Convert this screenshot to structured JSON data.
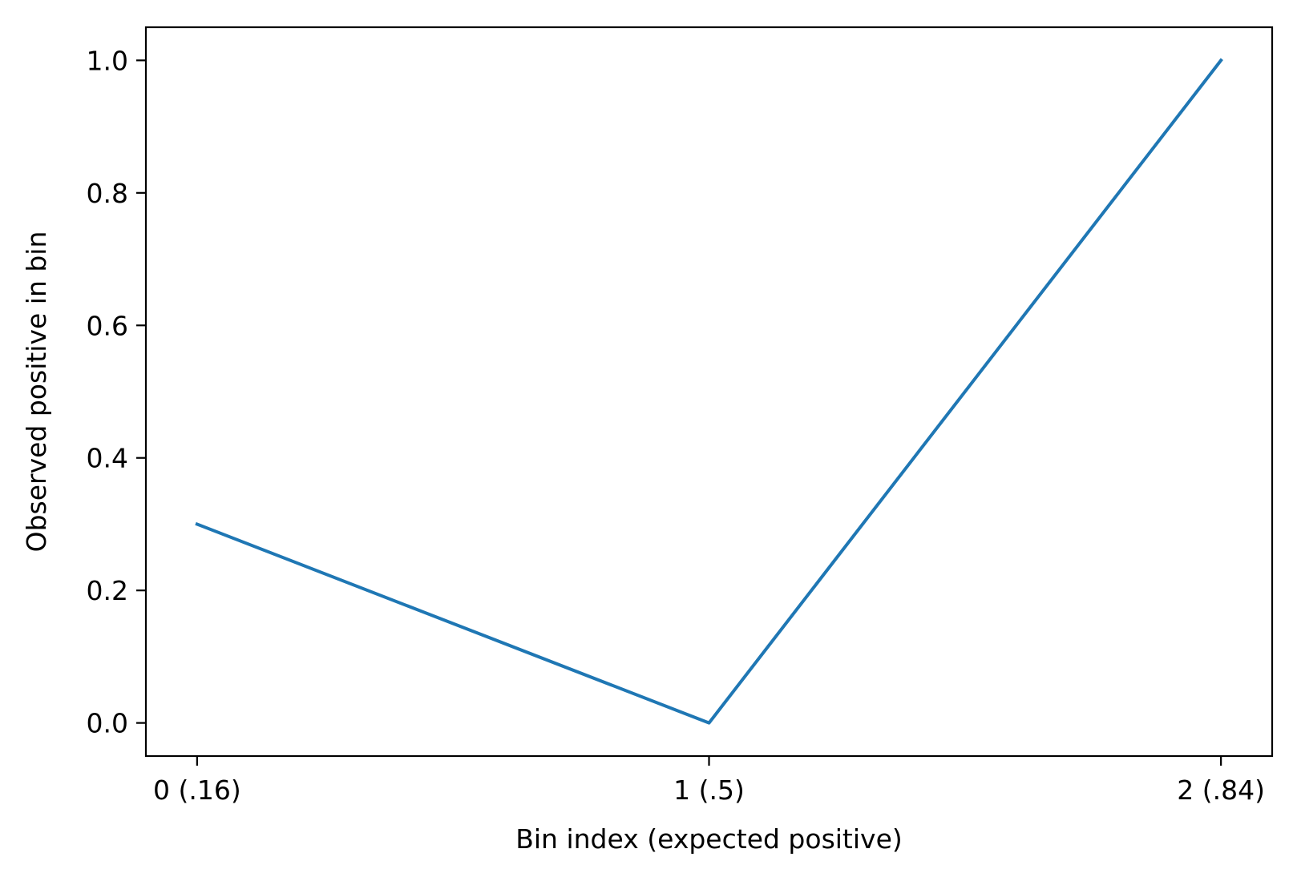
{
  "chart_data": {
    "type": "line",
    "title": "",
    "xlabel": "Bin index (expected positive)",
    "ylabel": "Observed positive in bin",
    "x": [
      0,
      1,
      2
    ],
    "x_tick_labels": [
      "0 (.16)",
      "1 (.5)",
      "2 (.84)"
    ],
    "series": [
      {
        "values": [
          0.3,
          0.0,
          1.0
        ]
      }
    ],
    "xlim": [
      -0.1,
      2.1
    ],
    "ylim": [
      -0.05,
      1.05
    ],
    "y_ticks": [
      0.0,
      0.2,
      0.4,
      0.6,
      0.8,
      1.0
    ],
    "y_tick_labels": [
      "0.0",
      "0.2",
      "0.4",
      "0.6",
      "0.8",
      "1.0"
    ],
    "grid": false,
    "line_color": "#1f77b4"
  }
}
